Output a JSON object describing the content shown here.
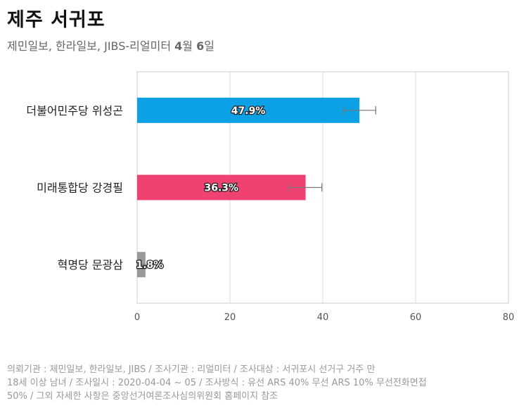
{
  "header": {
    "title": "제주 서귀포",
    "subtitle_prefix": "제민일보, 한라일보, JIBS-리얼미터 ",
    "subtitle_month": "4",
    "subtitle_month_unit": "월 ",
    "subtitle_day": "6",
    "subtitle_day_unit": "일"
  },
  "chart_data": {
    "type": "bar",
    "orientation": "horizontal",
    "categories": [
      "더불어민주당 위성곤",
      "미래통합당 강경필",
      "혁명당 문광삼"
    ],
    "values": [
      47.9,
      36.3,
      1.8
    ],
    "value_labels": [
      "47.9%",
      "36.3%",
      "1.8%"
    ],
    "error_margin": 3.5,
    "colors": [
      "#0ca0e4",
      "#ef4270",
      "#999999"
    ],
    "xlim": [
      0,
      80
    ],
    "xticks": [
      0,
      20,
      40,
      60,
      80
    ],
    "xtick_labels": [
      "0",
      "20",
      "40",
      "60",
      "80"
    ],
    "grid": true,
    "title": "",
    "xlabel": "",
    "ylabel": ""
  },
  "footer": {
    "line1": "의뢰기관 : 제민일보, 한라일보, JIBS / 조사기관 : 리얼미터 / 조사대상 : 서귀포시 선거구 거주 만",
    "line2": "18세 이상 남녀 / 조사일시 : 2020-04-04 ~ 05 / 조사방식 : 유선 ARS 40% 무선 ARS 10% 무선전화면접",
    "line3": "50% / 그외 자세한 사항은 중앙선거여론조사심의위원회 홈페이지 참조"
  }
}
